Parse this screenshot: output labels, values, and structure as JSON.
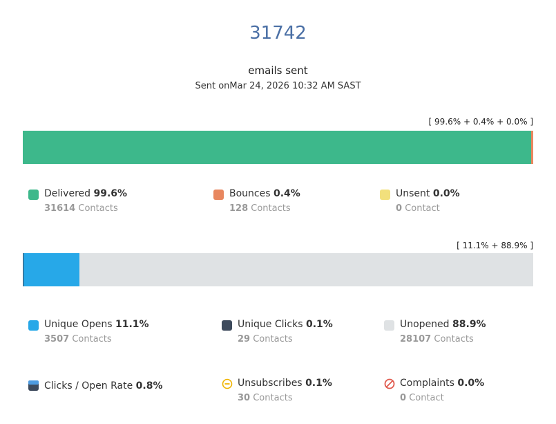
{
  "header": {
    "count": 31742,
    "subtitle": "emails sent",
    "sent_prefix": "Sent on",
    "sent_date": "Mar 24, 2026 10:32 AM SAST"
  },
  "delivery": {
    "summary": "[ 99.6% + 0.4% + 0.0% ]",
    "items": [
      {
        "label": "Delivered",
        "percent": {
          "value": 99.6,
          "label": "99.6%"
        },
        "contacts": 31614,
        "unit": "Contacts",
        "color": "#3db88b"
      },
      {
        "label": "Bounces",
        "percent": {
          "value": 0.4,
          "label": "0.4%"
        },
        "contacts": 128,
        "unit": "Contacts",
        "color": "#e8875f"
      },
      {
        "label": "Unsent",
        "percent": {
          "value": 0.0,
          "label": "0.0%"
        },
        "contacts": 0,
        "unit": "Contact",
        "color": "#f2e07c"
      }
    ]
  },
  "engagement": {
    "summary": "[ 11.1% + 88.9% ]",
    "items": [
      {
        "label": "Unique Opens",
        "percent": {
          "value": 11.1,
          "label": "11.1%"
        },
        "contacts": 3507,
        "unit": "Contacts",
        "color": "#27a8e8"
      },
      {
        "label": "Unique Clicks",
        "percent": {
          "value": 0.1,
          "label": "0.1%"
        },
        "contacts": 29,
        "unit": "Contacts",
        "color": "#3d4a5c"
      },
      {
        "label": "Unopened",
        "percent": {
          "value": 88.9,
          "label": "88.9%"
        },
        "contacts": 28107,
        "unit": "Contacts",
        "color": "#dfe2e4"
      }
    ],
    "extras": [
      {
        "label": "Clicks / Open Rate",
        "percent": {
          "value": 0.8,
          "label": "0.8%"
        }
      },
      {
        "label": "Unsubscribes",
        "percent": {
          "value": 0.1,
          "label": "0.1%"
        },
        "contacts": 30,
        "unit": "Contacts"
      },
      {
        "label": "Complaints",
        "percent": {
          "value": 0.0,
          "label": "0.0%"
        },
        "contacts": 0,
        "unit": "Contact"
      }
    ]
  }
}
